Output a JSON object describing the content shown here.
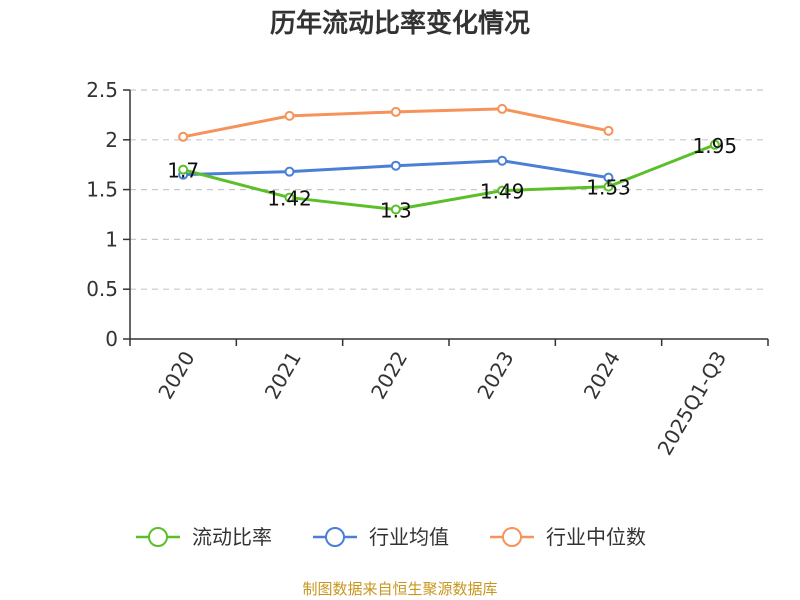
{
  "chart_data": {
    "type": "line",
    "title": "历年流动比率变化情况",
    "categories": [
      "2020",
      "2021",
      "2022",
      "2023",
      "2024",
      "2025Q1-Q3"
    ],
    "ylim": [
      0,
      2.5
    ],
    "yticks": [
      "0",
      "0.5",
      "1",
      "1.5",
      "2",
      "2.5"
    ],
    "grid": true,
    "legend_position": "bottom",
    "series": [
      {
        "name": "流动比率",
        "color": "#5cbf2a",
        "values": [
          1.7,
          1.42,
          1.3,
          1.49,
          1.53,
          1.95
        ],
        "data_labels": [
          "1.7",
          "1.42",
          "1.3",
          "1.49",
          "1.53",
          "1.95"
        ]
      },
      {
        "name": "行业均值",
        "color": "#4b7fd6",
        "values": [
          1.65,
          1.68,
          1.74,
          1.79,
          1.62,
          null
        ]
      },
      {
        "name": "行业中位数",
        "color": "#f5935a",
        "values": [
          2.03,
          2.24,
          2.28,
          2.31,
          2.09,
          null
        ]
      }
    ]
  },
  "footer": {
    "source": "制图数据来自恒生聚源数据库"
  }
}
